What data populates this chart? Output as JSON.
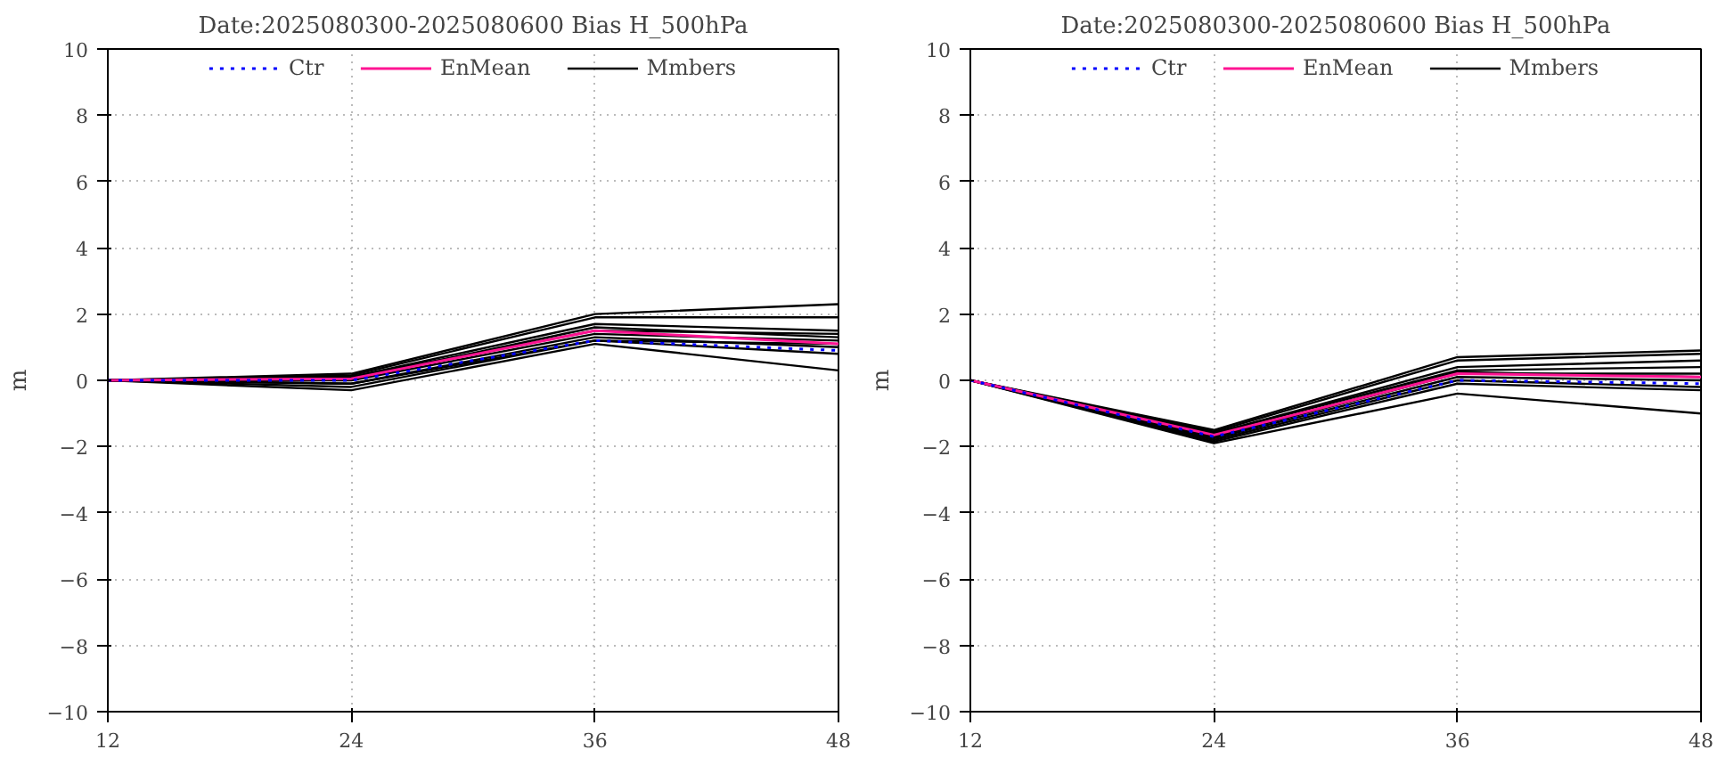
{
  "chart_data": [
    {
      "type": "line",
      "title": "Date:2025080300-2025080600 Bias H_500hPa",
      "ylabel": "m",
      "x": [
        12,
        24,
        36,
        48
      ],
      "xlim": [
        12,
        48
      ],
      "xticks": [
        12,
        24,
        36,
        48
      ],
      "ylim": [
        -10,
        10
      ],
      "yticks": [
        -10,
        -8,
        -6,
        -4,
        -2,
        0,
        2,
        4,
        6,
        8,
        10
      ],
      "grid": true,
      "legend": "top",
      "series": [
        {
          "name": "Mmbers",
          "color": "#000000",
          "line_style": "solid",
          "values": [
            0,
            0.2,
            2.0,
            2.3
          ]
        },
        {
          "color": "#000000",
          "line_style": "solid",
          "values": [
            0,
            0.15,
            1.9,
            1.9
          ]
        },
        {
          "color": "#000000",
          "line_style": "solid",
          "values": [
            0,
            0.1,
            1.7,
            1.5
          ]
        },
        {
          "color": "#000000",
          "line_style": "solid",
          "values": [
            0,
            0.05,
            1.6,
            1.3
          ]
        },
        {
          "color": "#000000",
          "line_style": "solid",
          "values": [
            0,
            0,
            1.4,
            1.2
          ]
        },
        {
          "color": "#000000",
          "line_style": "solid",
          "values": [
            0,
            -0.1,
            1.3,
            1.0
          ]
        },
        {
          "color": "#000000",
          "line_style": "solid",
          "values": [
            0,
            -0.2,
            1.2,
            0.8
          ]
        },
        {
          "color": "#000000",
          "line_style": "solid",
          "values": [
            0,
            -0.3,
            1.1,
            0.3
          ]
        },
        {
          "color": "#000000",
          "line_style": "solid",
          "values": [
            0,
            0.1,
            1.5,
            1.4
          ]
        },
        {
          "color": "#000000",
          "line_style": "solid",
          "values": [
            0,
            -0.1,
            1.2,
            1.1
          ]
        },
        {
          "name": "EnMean",
          "color": "#ff1493",
          "line_style": "solid",
          "values": [
            0,
            0.05,
            1.5,
            1.1
          ]
        },
        {
          "name": "Ctr",
          "color": "#0000ff",
          "line_style": "dotted",
          "values": [
            0,
            0.0,
            1.2,
            0.9
          ]
        }
      ]
    },
    {
      "type": "line",
      "title": "Date:2025080300-2025080600 Bias H_500hPa",
      "ylabel": "m",
      "x": [
        12,
        24,
        36,
        48
      ],
      "xlim": [
        12,
        48
      ],
      "xticks": [
        12,
        24,
        36,
        48
      ],
      "ylim": [
        -10,
        10
      ],
      "yticks": [
        -10,
        -8,
        -6,
        -4,
        -2,
        0,
        2,
        4,
        6,
        8,
        10
      ],
      "grid": true,
      "legend": "top",
      "series": [
        {
          "name": "Mmbers",
          "color": "#000000",
          "line_style": "solid",
          "values": [
            0,
            -1.5,
            0.7,
            0.9
          ]
        },
        {
          "color": "#000000",
          "line_style": "solid",
          "values": [
            0,
            -1.55,
            0.6,
            0.8
          ]
        },
        {
          "color": "#000000",
          "line_style": "solid",
          "values": [
            0,
            -1.6,
            0.4,
            0.6
          ]
        },
        {
          "color": "#000000",
          "line_style": "solid",
          "values": [
            0,
            -1.6,
            0.3,
            0.4
          ]
        },
        {
          "color": "#000000",
          "line_style": "solid",
          "values": [
            0,
            -1.7,
            0.2,
            0.2
          ]
        },
        {
          "color": "#000000",
          "line_style": "solid",
          "values": [
            0,
            -1.75,
            0.1,
            0.0
          ]
        },
        {
          "color": "#000000",
          "line_style": "solid",
          "values": [
            0,
            -1.8,
            0.0,
            -0.2
          ]
        },
        {
          "color": "#000000",
          "line_style": "solid",
          "values": [
            0,
            -1.85,
            -0.1,
            -0.3
          ]
        },
        {
          "color": "#000000",
          "line_style": "solid",
          "values": [
            0,
            -1.9,
            -0.4,
            -1.0
          ]
        },
        {
          "color": "#000000",
          "line_style": "solid",
          "values": [
            0,
            -1.7,
            0.25,
            0.1
          ]
        },
        {
          "name": "EnMean",
          "color": "#ff1493",
          "line_style": "solid",
          "values": [
            0,
            -1.65,
            0.2,
            0.1
          ]
        },
        {
          "name": "Ctr",
          "color": "#0000ff",
          "line_style": "dotted",
          "values": [
            0,
            -1.7,
            0.0,
            -0.1
          ]
        }
      ]
    }
  ]
}
